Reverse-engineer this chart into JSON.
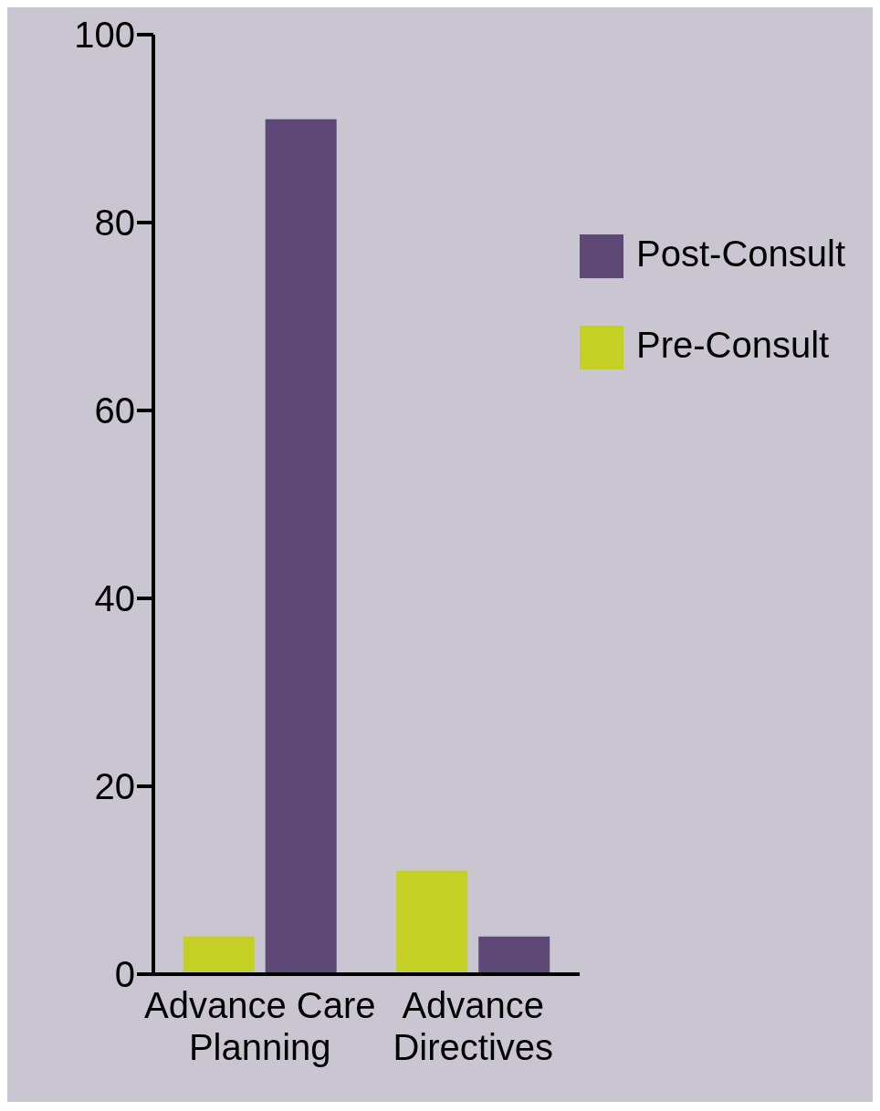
{
  "chart_data": {
    "type": "bar",
    "categories": [
      "Advance Care Planning",
      "Advance Directives"
    ],
    "series": [
      {
        "name": "Pre-Consult",
        "color": "#c4d124",
        "values": [
          4,
          11
        ]
      },
      {
        "name": "Post-Consult",
        "color": "#5e4876",
        "values": [
          91,
          4
        ]
      }
    ],
    "ylim": [
      0,
      100
    ],
    "yticks": [
      0,
      20,
      40,
      60,
      80,
      100
    ],
    "grid": false,
    "legend": "top right"
  }
}
